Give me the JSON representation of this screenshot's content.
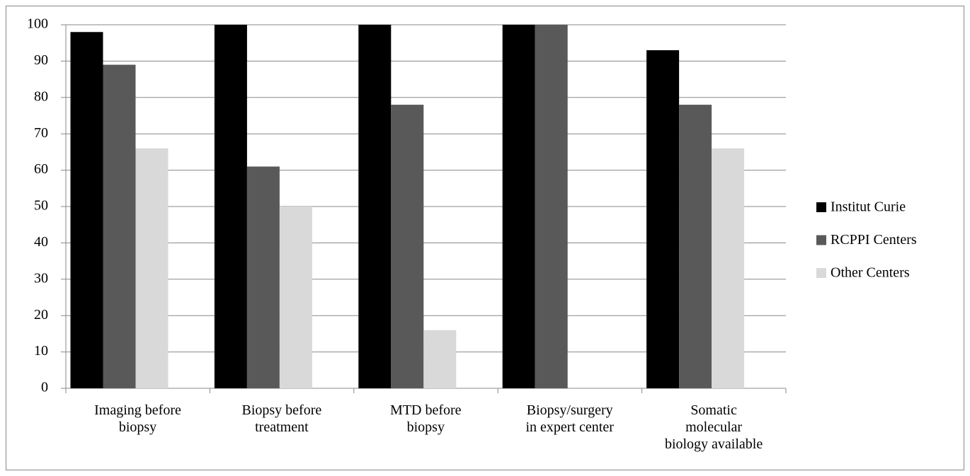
{
  "chart_data": {
    "type": "bar",
    "categories": [
      "Imaging before\nbiopsy",
      "Biopsy before\ntreatment",
      "MTD before\nbiopsy",
      "Biopsy/surgery\nin expert center",
      "Somatic\nmolecular\nbiology available"
    ],
    "series": [
      {
        "name": "Institut Curie",
        "color": "#000000",
        "values": [
          98,
          100,
          100,
          100,
          93
        ]
      },
      {
        "name": "RCPPI Centers",
        "color": "#595959",
        "values": [
          89,
          61,
          78,
          100,
          78
        ]
      },
      {
        "name": "Other Centers",
        "color": "#d9d9d9",
        "values": [
          66,
          50,
          16,
          0,
          66
        ]
      }
    ],
    "ylim": [
      0,
      100
    ],
    "yticks": [
      0,
      10,
      20,
      30,
      40,
      50,
      60,
      70,
      80,
      90,
      100
    ],
    "grid": true,
    "legend": "right"
  }
}
